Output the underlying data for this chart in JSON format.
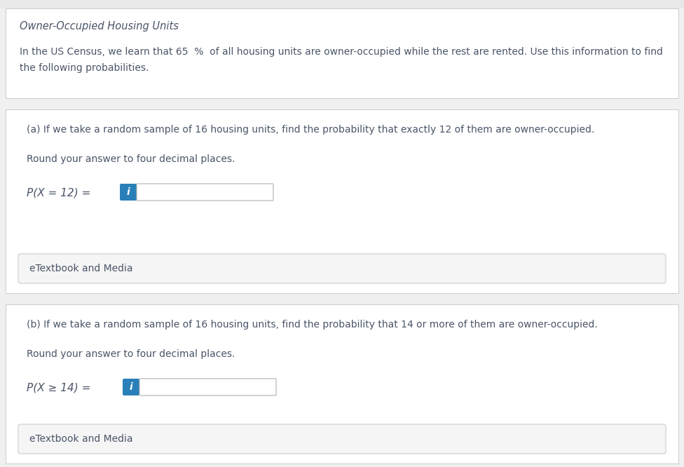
{
  "bg_color": "#f0f0f0",
  "page_bg": "#ffffff",
  "card_bg": "#ffffff",
  "card_border": "#d0d0d0",
  "title_text": "Owner-Occupied Housing Units",
  "intro_line1": "In the US Census, we learn that 65  %  of all housing units are owner-occupied while the rest are rented. Use this information to find",
  "intro_line2": "the following probabilities.",
  "part_a_label": "(a) If we take a random sample of 16 housing units, find the probability that exactly 12 of them are owner-occupied.",
  "part_a_round": "Round your answer to four decimal places.",
  "part_a_prob": "P(X = 12) =",
  "part_b_label": "(b) If we take a random sample of 16 housing units, find the probability that 14 or more of them are owner-occupied.",
  "part_b_round": "Round your answer to four decimal places.",
  "part_b_prob": "P(X ≥ 14) =",
  "etextbook_text": "eTextbook and Media",
  "info_btn_color": "#2980b9",
  "info_btn_text": "i",
  "input_box_color": "#ffffff",
  "input_border_color": "#b0b0b0",
  "etextbook_bg": "#f5f5f5",
  "etextbook_border": "#cccccc",
  "text_color": "#4a5568",
  "title_color": "#4a5568",
  "separator_color": "#e0e0e0",
  "top_bar_color": "#e8e8e8"
}
